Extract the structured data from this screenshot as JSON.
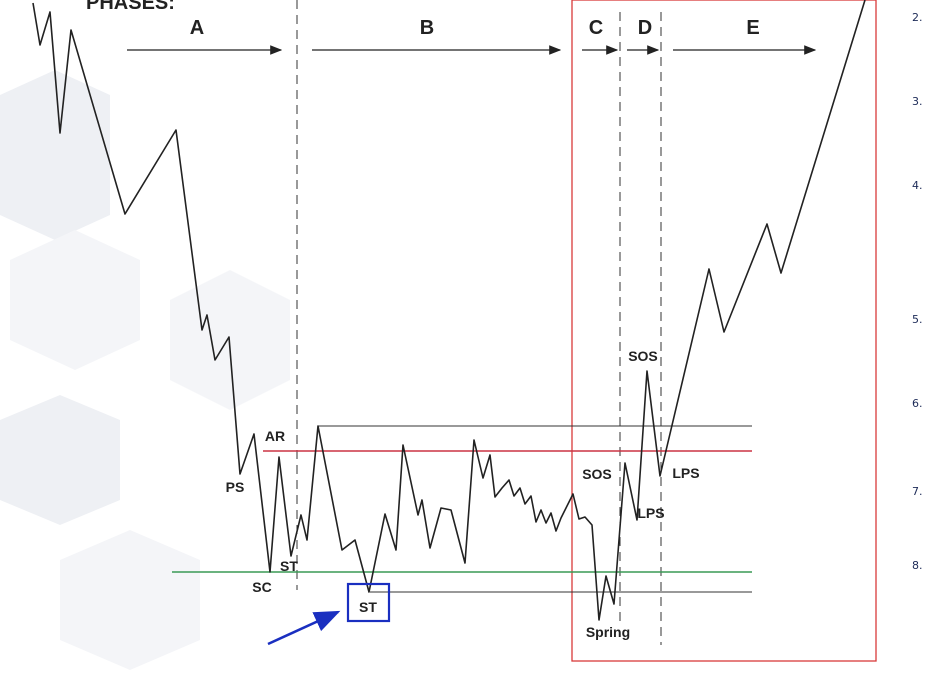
{
  "header": {
    "title": "PHASES:"
  },
  "phases": [
    "A",
    "B",
    "C",
    "D",
    "E"
  ],
  "events": {
    "ps": "PS",
    "sc": "SC",
    "ar": "AR",
    "st_phase_a": "ST",
    "st_phase_b": "ST",
    "spring": "Spring",
    "sos_c": "SOS",
    "sos_d": "SOS",
    "lps_c": "LPS",
    "lps_d": "LPS"
  },
  "side_list_numbers": [
    "2.",
    "3.",
    "4.",
    "5.",
    "6.",
    "7.",
    "8."
  ],
  "colors": {
    "price_line": "#222222",
    "resistance_line": "#cc3344",
    "support_line": "#3a9a55",
    "highlight_box": "#1a2fc0",
    "pointer_arrow": "#1a2fc0",
    "phase_frame": "#d83a3a",
    "guide_lines": "#333333"
  }
}
